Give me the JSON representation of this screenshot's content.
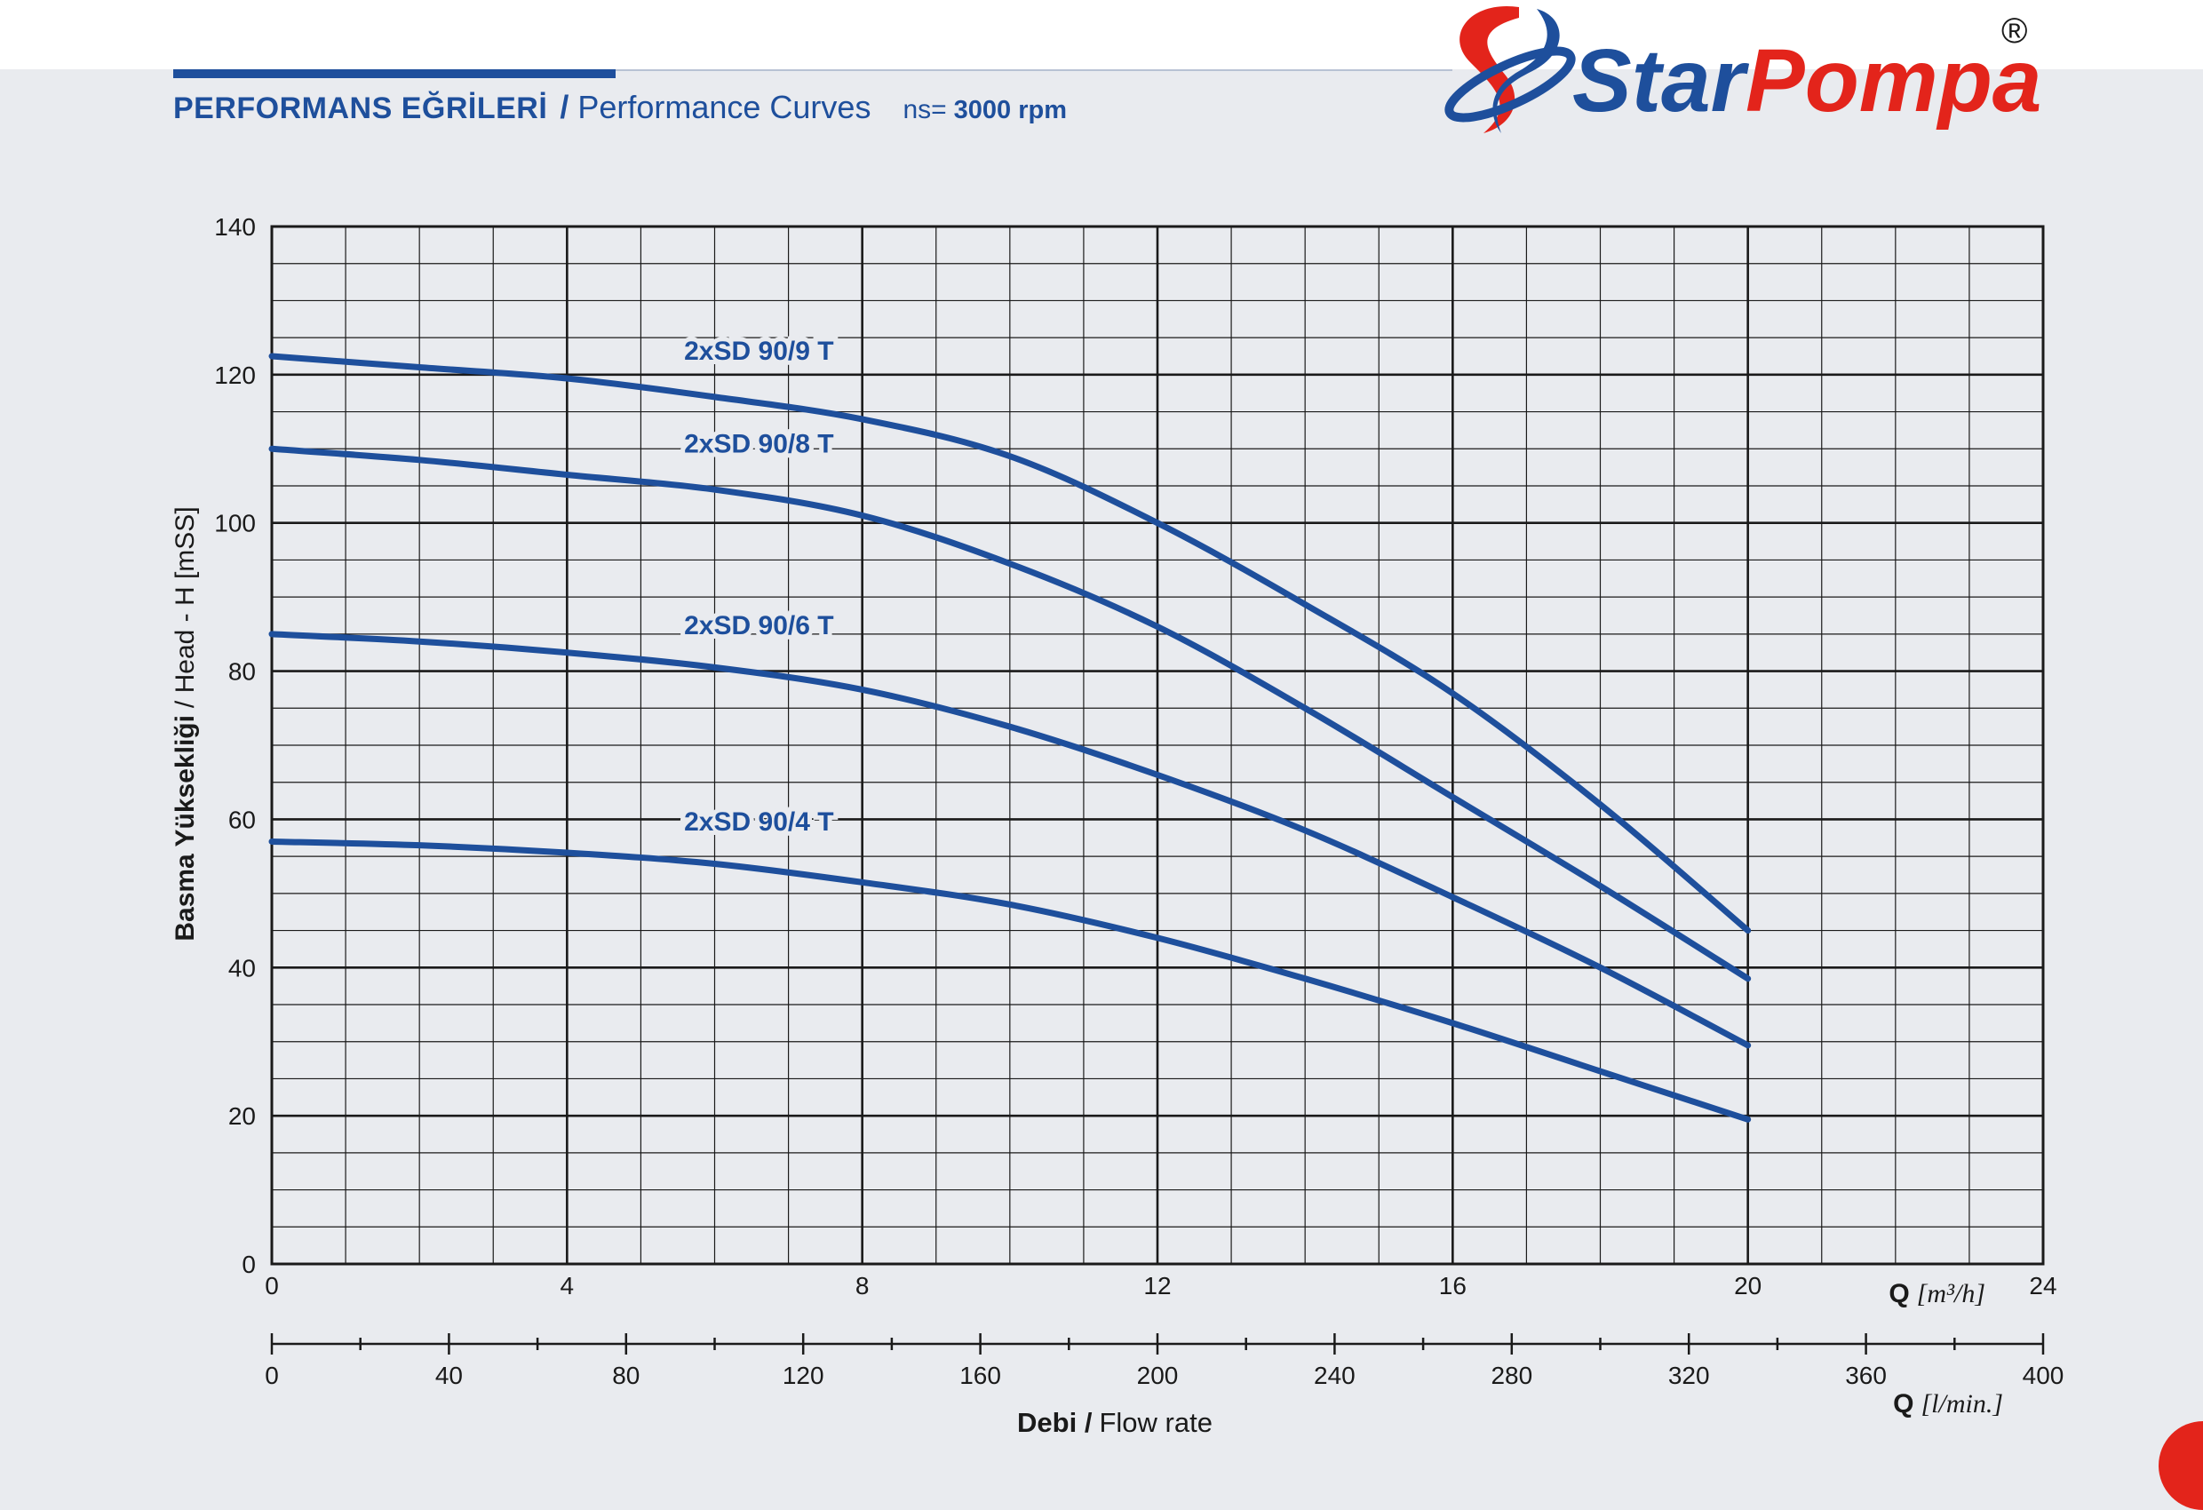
{
  "header": {
    "title_tr": "PERFORMANS EĞRİLERİ",
    "separator": "/",
    "title_en": "Performance Curves",
    "speed_label": "ns=",
    "speed_value": "3000 rpm"
  },
  "brand": {
    "name_part1": "Star",
    "name_part2": "Pompa",
    "registered": "®",
    "colors": {
      "blue": "#1e4f9c",
      "red": "#e3241b"
    },
    "icon": "sp-monogram-logo"
  },
  "colors": {
    "curve": "#1e4f9c",
    "grid": "#1a1a1a",
    "background": "#e9ebef"
  },
  "chart_data": {
    "type": "line",
    "title": "",
    "grid": true,
    "xlim": [
      0,
      24
    ],
    "ylim": [
      0,
      140
    ],
    "x_ticks": [
      "0",
      "4",
      "8",
      "12",
      "16",
      "20",
      "24"
    ],
    "y_ticks": [
      "0",
      "20",
      "40",
      "60",
      "80",
      "100",
      "120",
      "140"
    ],
    "ylabel_bold": "Basma Yüksekliği",
    "ylabel_rest": "/ Head - H [mSS]",
    "xlabel_q": "Q",
    "xlabel_unit": "[m³/h]",
    "secondary_x": {
      "ticks": [
        "0",
        "40",
        "80",
        "120",
        "160",
        "200",
        "240",
        "280",
        "320",
        "360",
        "400"
      ],
      "max": 400,
      "q": "Q",
      "unit": "[l/min.]"
    },
    "flow_label_bold": "Debi /",
    "flow_label_rest": "Flow rate",
    "series": [
      {
        "name": "2xSD 90/9 T",
        "x": [
          0,
          2,
          4,
          6,
          8,
          10,
          12,
          14,
          16,
          18,
          20
        ],
        "values": [
          122.5,
          121,
          119.5,
          117,
          114,
          109,
          100,
          89,
          77,
          62,
          45
        ]
      },
      {
        "name": "2xSD 90/8 T",
        "x": [
          0,
          2,
          4,
          6,
          8,
          10,
          12,
          14,
          16,
          18,
          20
        ],
        "values": [
          110,
          108.5,
          106.5,
          104.5,
          101,
          94.5,
          86,
          75,
          63,
          51,
          38.5
        ]
      },
      {
        "name": "2xSD 90/6 T",
        "x": [
          0,
          2,
          4,
          6,
          8,
          10,
          12,
          14,
          16,
          18,
          20
        ],
        "values": [
          85,
          84,
          82.5,
          80.5,
          77.5,
          72.5,
          66,
          58.5,
          49.5,
          40,
          29.5
        ]
      },
      {
        "name": "2xSD 90/4 T",
        "x": [
          0,
          2,
          4,
          6,
          8,
          10,
          12,
          14,
          16,
          18,
          20
        ],
        "values": [
          57,
          56.5,
          55.5,
          54,
          51.5,
          48.5,
          44,
          38.5,
          32.5,
          26,
          19.5
        ]
      }
    ],
    "series_label_x": [
      6.6,
      6.6,
      6.6,
      6.6
    ],
    "series_label_y": [
      122,
      109.5,
      85,
      58.5
    ]
  }
}
